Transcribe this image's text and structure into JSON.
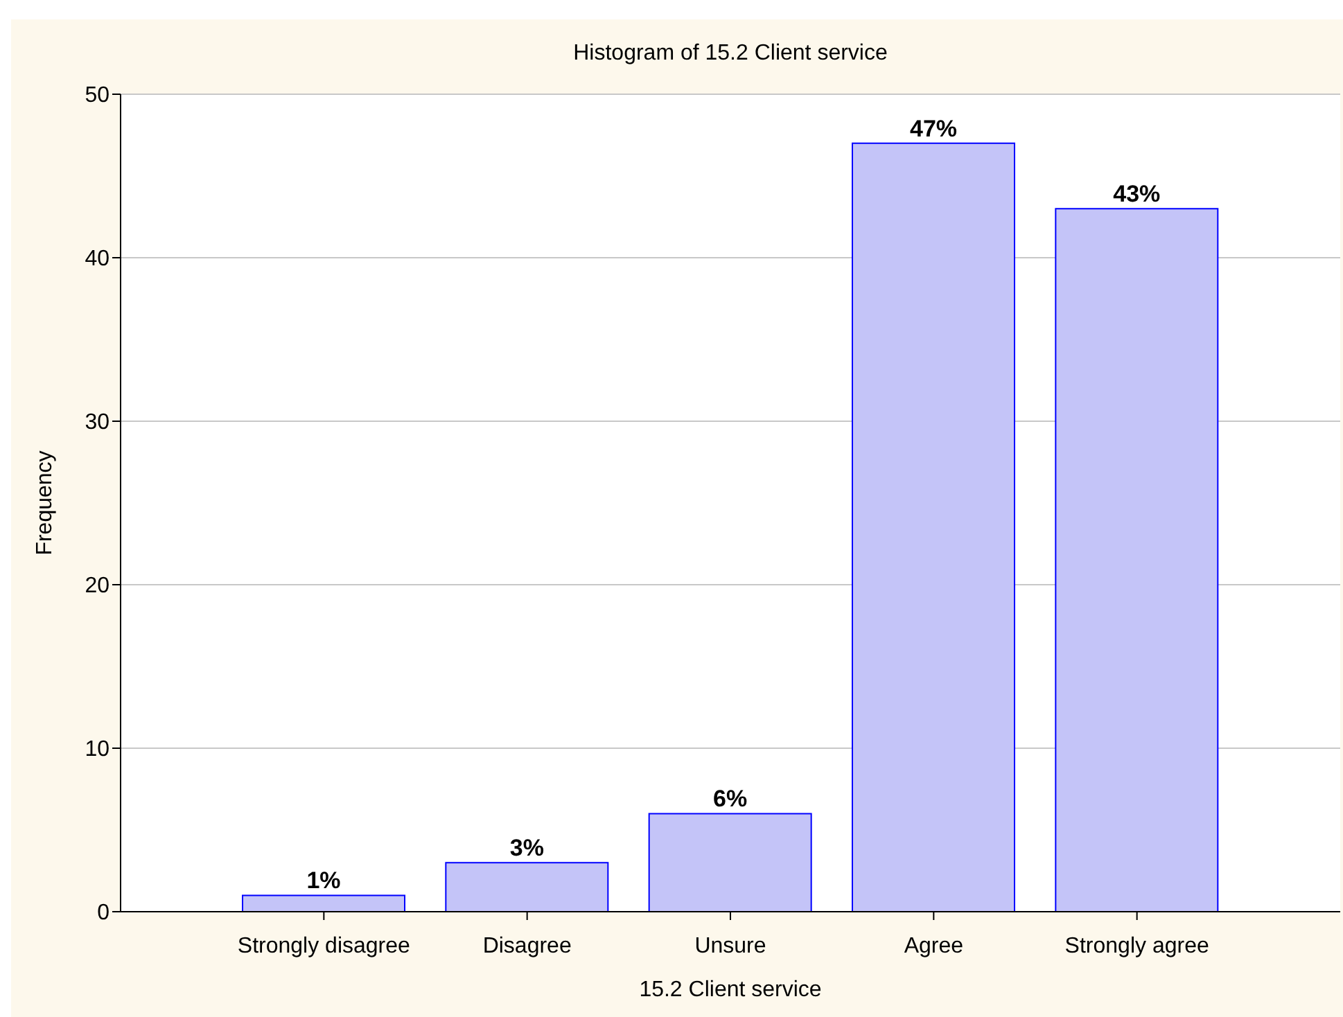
{
  "chart_data": {
    "type": "bar",
    "title": "Histogram of 15.2 Client service",
    "xlabel": "15.2 Client service",
    "ylabel": "Frequency",
    "categories": [
      "Strongly disagree",
      "Disagree",
      "Unsure",
      "Agree",
      "Strongly agree"
    ],
    "values": [
      1,
      3,
      6,
      47,
      43
    ],
    "value_labels": [
      "1%",
      "3%",
      "6%",
      "47%",
      "43%"
    ],
    "color": "#c4c4f8",
    "ylim": [
      0,
      50
    ],
    "yticks": [
      0,
      10,
      20,
      30,
      40,
      50
    ],
    "grid": "y"
  }
}
